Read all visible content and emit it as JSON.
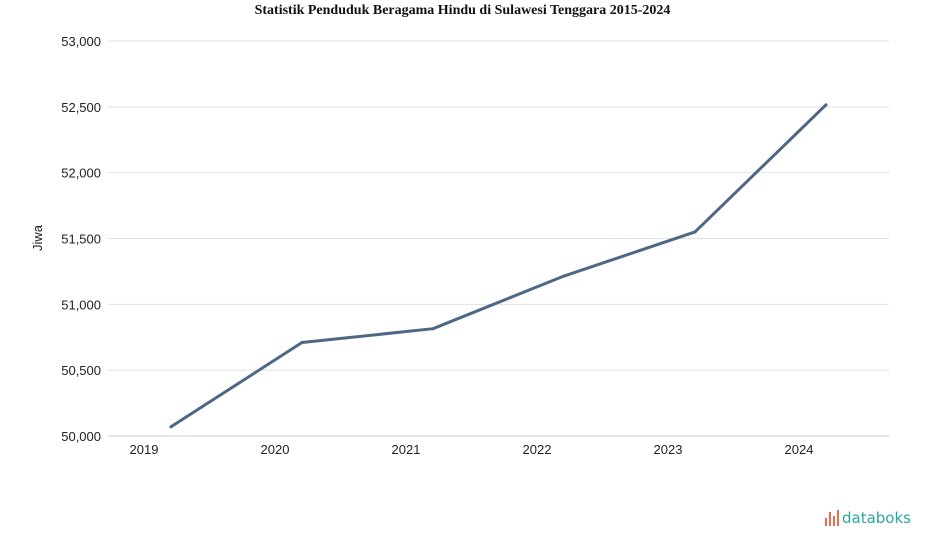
{
  "chart_data": {
    "type": "line",
    "title": "Statistik Penduduk Beragama Hindu di Sulawesi Tenggara 2015-2024",
    "xlabel": "",
    "ylabel": "Jiwa",
    "categories": [
      "2019",
      "2020",
      "2021",
      "2022",
      "2023",
      "2024"
    ],
    "series": [
      {
        "values": [
          50070,
          50710,
          50815,
          51215,
          51550,
          52515
        ]
      }
    ],
    "ylim": [
      50000,
      53000
    ],
    "yticks": [
      50000,
      50500,
      51000,
      51500,
      52000,
      52500,
      53000
    ],
    "ytick_labels": [
      "50,000",
      "50,500",
      "51,000",
      "51,500",
      "52,000",
      "52,500",
      "53,000"
    ],
    "grid": true,
    "legend": "none",
    "line_color": "#4e6785"
  },
  "branding": {
    "logo_text": "databoks",
    "logo_color": "#2aa7a0",
    "icon": "databoks-bars-icon"
  }
}
